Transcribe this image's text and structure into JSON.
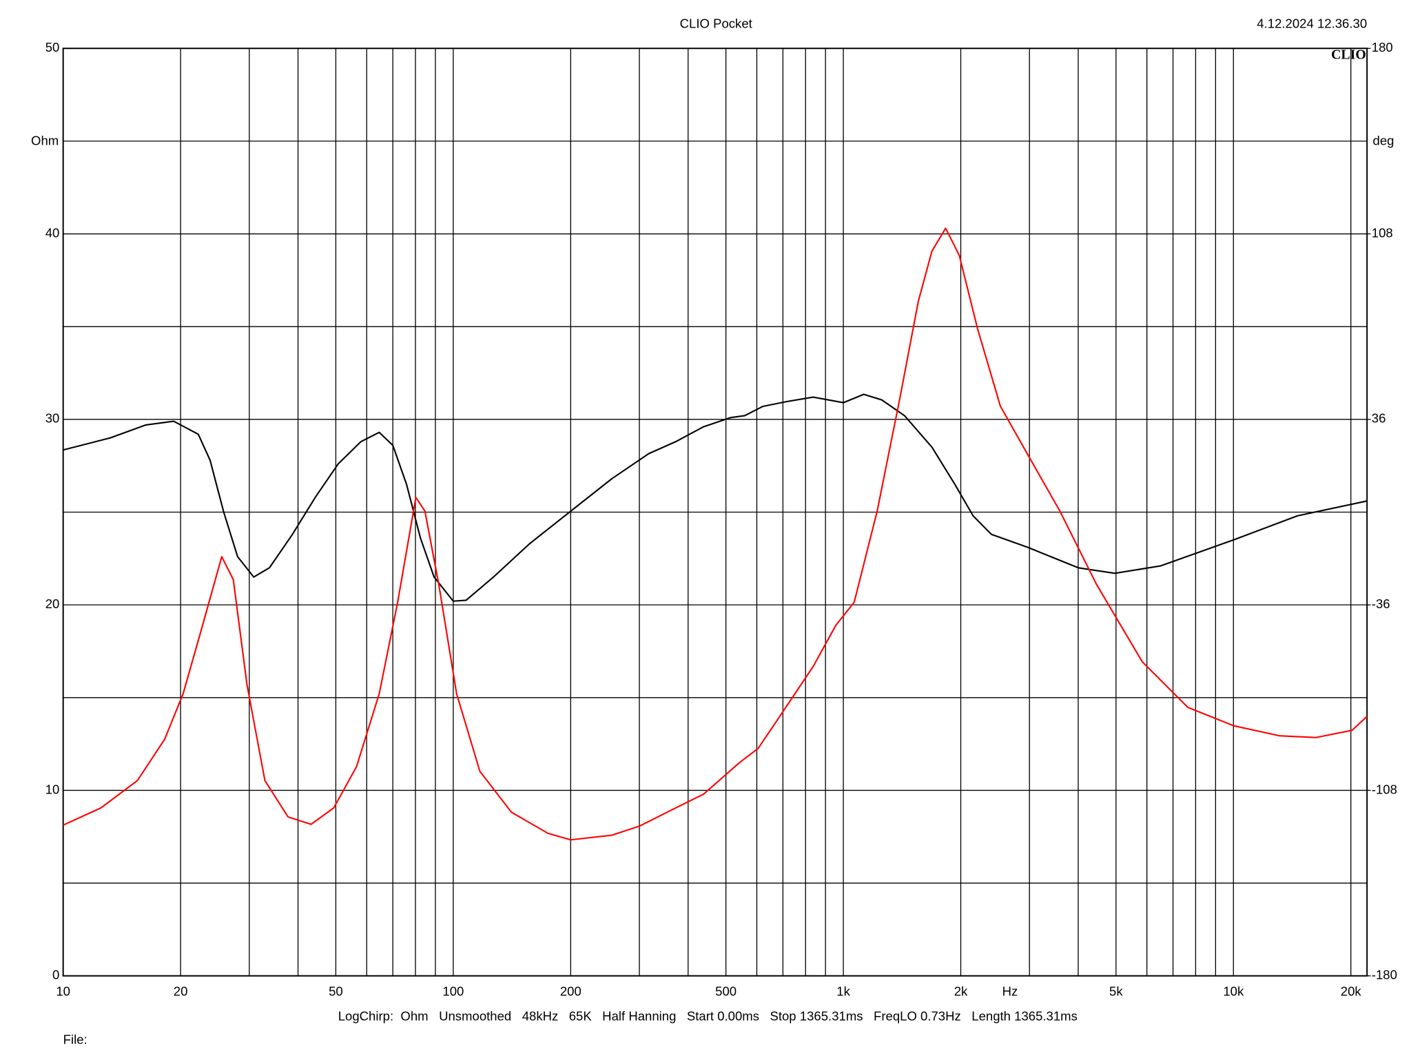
{
  "chart_data": {
    "type": "line",
    "title": "CLIO Pocket",
    "timestamp": "4.12.2024 12.36.30",
    "logo": "CLIO",
    "y_label": "Ohm",
    "y2_label": "deg",
    "x_label": "Hz",
    "footer": "LogChirp:  Ohm   Unsmoothed   48kHz   65K   Half Hanning   Start 0.00ms   Stop 1365.31ms   FreqLO 0.73Hz   Length 1365.31ms",
    "file_label": "File:",
    "xlog": true,
    "grid": true,
    "xlim": [
      10,
      22000
    ],
    "ylim": [
      0,
      50
    ],
    "y2lim": [
      -180,
      180
    ],
    "xticks": [
      10,
      20,
      {
        "value": 30,
        "label": null
      },
      {
        "value": 40,
        "label": null
      },
      50,
      {
        "value": 60,
        "label": null
      },
      {
        "value": 70,
        "label": null
      },
      {
        "value": 80,
        "label": null
      },
      {
        "value": 90,
        "label": null
      },
      100,
      200,
      {
        "value": 300,
        "label": null
      },
      {
        "value": 400,
        "label": null
      },
      500,
      {
        "value": 600,
        "label": null
      },
      {
        "value": 700,
        "label": null
      },
      {
        "value": 800,
        "label": null
      },
      {
        "value": 900,
        "label": null
      },
      {
        "value": 1000,
        "label": "1k"
      },
      {
        "value": 2000,
        "label": "2k"
      },
      {
        "value": 3000,
        "label": null
      },
      {
        "value": 4000,
        "label": null
      },
      {
        "value": 5000,
        "label": "5k"
      },
      {
        "value": 6000,
        "label": null
      },
      {
        "value": 7000,
        "label": null
      },
      {
        "value": 8000,
        "label": null
      },
      {
        "value": 9000,
        "label": null
      },
      {
        "value": 10000,
        "label": "10k"
      },
      {
        "value": 20000,
        "label": "20k"
      }
    ],
    "yticks": [
      0,
      {
        "value": 5,
        "label": null
      },
      10,
      {
        "value": 15,
        "label": null
      },
      20,
      {
        "value": 25,
        "label": null
      },
      30,
      {
        "value": 35,
        "label": null
      },
      40,
      {
        "value": 45,
        "label": null
      },
      50
    ],
    "y2ticks": [
      -180,
      -108,
      -36,
      36,
      108,
      180
    ],
    "series": [
      {
        "color": "#000000",
        "x": [
          10,
          13.2,
          16.3,
          19.2,
          22.2,
          23.8,
          25.8,
          28,
          30.8,
          33.8,
          38.7,
          44.3,
          50.7,
          58,
          64.6,
          70,
          75.9,
          82.4,
          89.3,
          100,
          107.9,
          126.8,
          157,
          200,
          255,
          317,
          372,
          438,
          515,
          559,
          622,
          712,
          837,
          1000,
          1128,
          1254,
          1435,
          1687,
          1931,
          2151,
          2396,
          2970,
          4000,
          4964,
          6500,
          10000,
          14590,
          22000
        ],
        "values": [
          28.35,
          29.0,
          29.7,
          29.9,
          29.2,
          27.8,
          25.0,
          22.6,
          21.5,
          22.0,
          23.8,
          25.8,
          27.6,
          28.8,
          29.3,
          28.6,
          26.5,
          23.6,
          21.5,
          20.2,
          20.25,
          21.5,
          23.3,
          25.05,
          26.8,
          28.15,
          28.8,
          29.6,
          30.1,
          30.2,
          30.7,
          30.95,
          31.2,
          30.9,
          31.35,
          31.05,
          30.2,
          28.5,
          26.5,
          24.8,
          23.8,
          23.1,
          22.0,
          21.7,
          22.1,
          23.5,
          24.8,
          25.6
        ]
      },
      {
        "color": "#ff0000",
        "axis": "y2",
        "x": [
          10,
          12.5,
          15.5,
          18.2,
          20.3,
          22.6,
          25.5,
          27.3,
          29.6,
          32.9,
          37.7,
          43.2,
          49.4,
          56.5,
          64.6,
          72,
          80.2,
          84.6,
          91.8,
          102,
          117,
          141,
          175,
          200,
          255,
          300,
          372,
          438,
          543,
          605,
          712,
          837,
          957,
          1066,
          1221,
          1398,
          1557,
          1687,
          1829,
          1983,
          2208,
          2527,
          2970,
          3590,
          4454,
          5838,
          7643,
          10000,
          13100,
          16250,
          20140,
          22000
        ],
        "values": [
          -121.5,
          -114.8,
          -104.2,
          -88.2,
          -70.5,
          -45.7,
          -17.3,
          -26.2,
          -67,
          -104.2,
          -118.3,
          -121.2,
          -114.8,
          -98.8,
          -70.5,
          -35.1,
          5.7,
          0.4,
          -28,
          -70.5,
          -100.6,
          -116.5,
          -124.7,
          -127.2,
          -125.4,
          -121.9,
          -114.8,
          -109.5,
          -97.1,
          -91.7,
          -75.8,
          -59.9,
          -43.9,
          -35,
          0.4,
          44.7,
          81.9,
          101.3,
          110.2,
          99.6,
          71.2,
          41.1,
          22.3,
          0.4,
          -28,
          -58.1,
          -75.8,
          -82.9,
          -86.8,
          -87.5,
          -84.7,
          -79.3
        ]
      }
    ]
  }
}
